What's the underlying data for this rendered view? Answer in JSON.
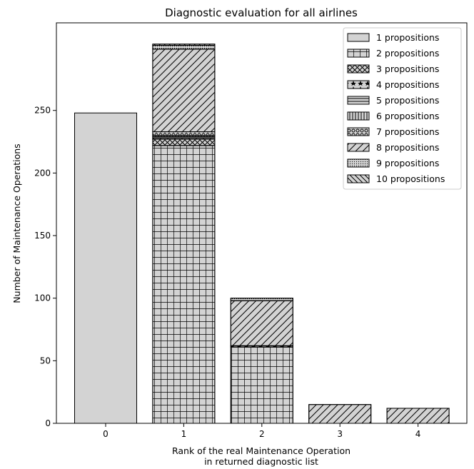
{
  "chart_data": {
    "type": "bar",
    "stacked": true,
    "title": "Diagnostic evaluation for all airlines",
    "xlabel_lines": [
      "Rank of the real Maintenance Operation",
      "in returned diagnostic list"
    ],
    "ylabel": "Number of Maintenance Operations",
    "categories": [
      "0",
      "1",
      "2",
      "3",
      "4"
    ],
    "yticks": [
      0,
      50,
      100,
      150,
      200,
      250
    ],
    "ylim": [
      0,
      320
    ],
    "legend_position": "top-right",
    "grid": false,
    "bar_color": "#d3d3d3",
    "series": [
      {
        "name": "1 propositions",
        "hatch": "none",
        "values": [
          248,
          0,
          0,
          0,
          0
        ]
      },
      {
        "name": "2 propositions",
        "hatch": "grid",
        "values": [
          0,
          222,
          61,
          0,
          0
        ]
      },
      {
        "name": "3 propositions",
        "hatch": "crosshatch",
        "values": [
          0,
          5,
          0,
          0,
          0
        ]
      },
      {
        "name": "4 propositions",
        "hatch": "stars",
        "values": [
          0,
          1,
          1,
          0,
          0
        ]
      },
      {
        "name": "5 propositions",
        "hatch": "horizontal",
        "values": [
          0,
          1,
          0,
          0,
          0
        ]
      },
      {
        "name": "6 propositions",
        "hatch": "vertical",
        "values": [
          0,
          1,
          0,
          0,
          0
        ]
      },
      {
        "name": "7 propositions",
        "hatch": "circles",
        "values": [
          0,
          3,
          0,
          0,
          0
        ]
      },
      {
        "name": "8 propositions",
        "hatch": "diagonal",
        "values": [
          0,
          66,
          36,
          15,
          12
        ]
      },
      {
        "name": "9 propositions",
        "hatch": "dots",
        "values": [
          0,
          3,
          2,
          0,
          0
        ]
      },
      {
        "name": "10 propositions",
        "hatch": "backdiagonal",
        "values": [
          0,
          1,
          0,
          0,
          0
        ]
      }
    ]
  }
}
